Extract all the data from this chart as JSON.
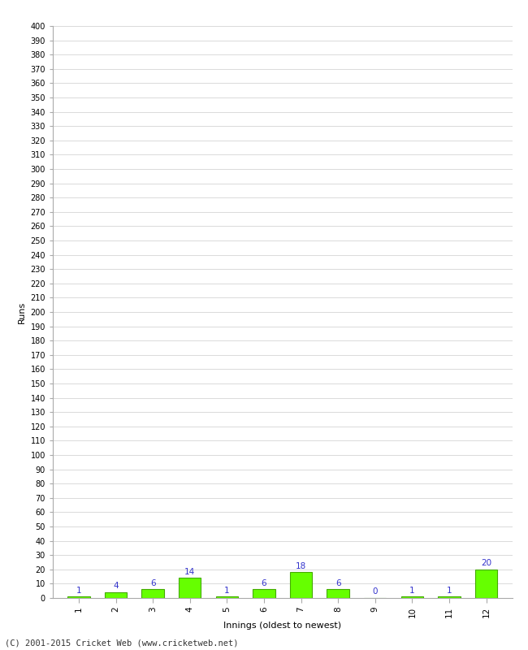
{
  "innings": [
    1,
    2,
    3,
    4,
    5,
    6,
    7,
    8,
    9,
    10,
    11,
    12
  ],
  "values": [
    1,
    4,
    6,
    14,
    1,
    6,
    18,
    6,
    0,
    1,
    1,
    20
  ],
  "bar_color": "#66ff00",
  "bar_edge_color": "#44aa00",
  "xlabel": "Innings (oldest to newest)",
  "ylabel": "Runs",
  "ylim_min": 0,
  "ylim_max": 400,
  "ytick_step": 10,
  "label_color": "#3333cc",
  "footer": "(C) 2001-2015 Cricket Web (www.cricketweb.net)",
  "bg_color": "#ffffff",
  "grid_color": "#cccccc",
  "fig_width": 6.5,
  "fig_height": 8.0,
  "dpi": 100
}
